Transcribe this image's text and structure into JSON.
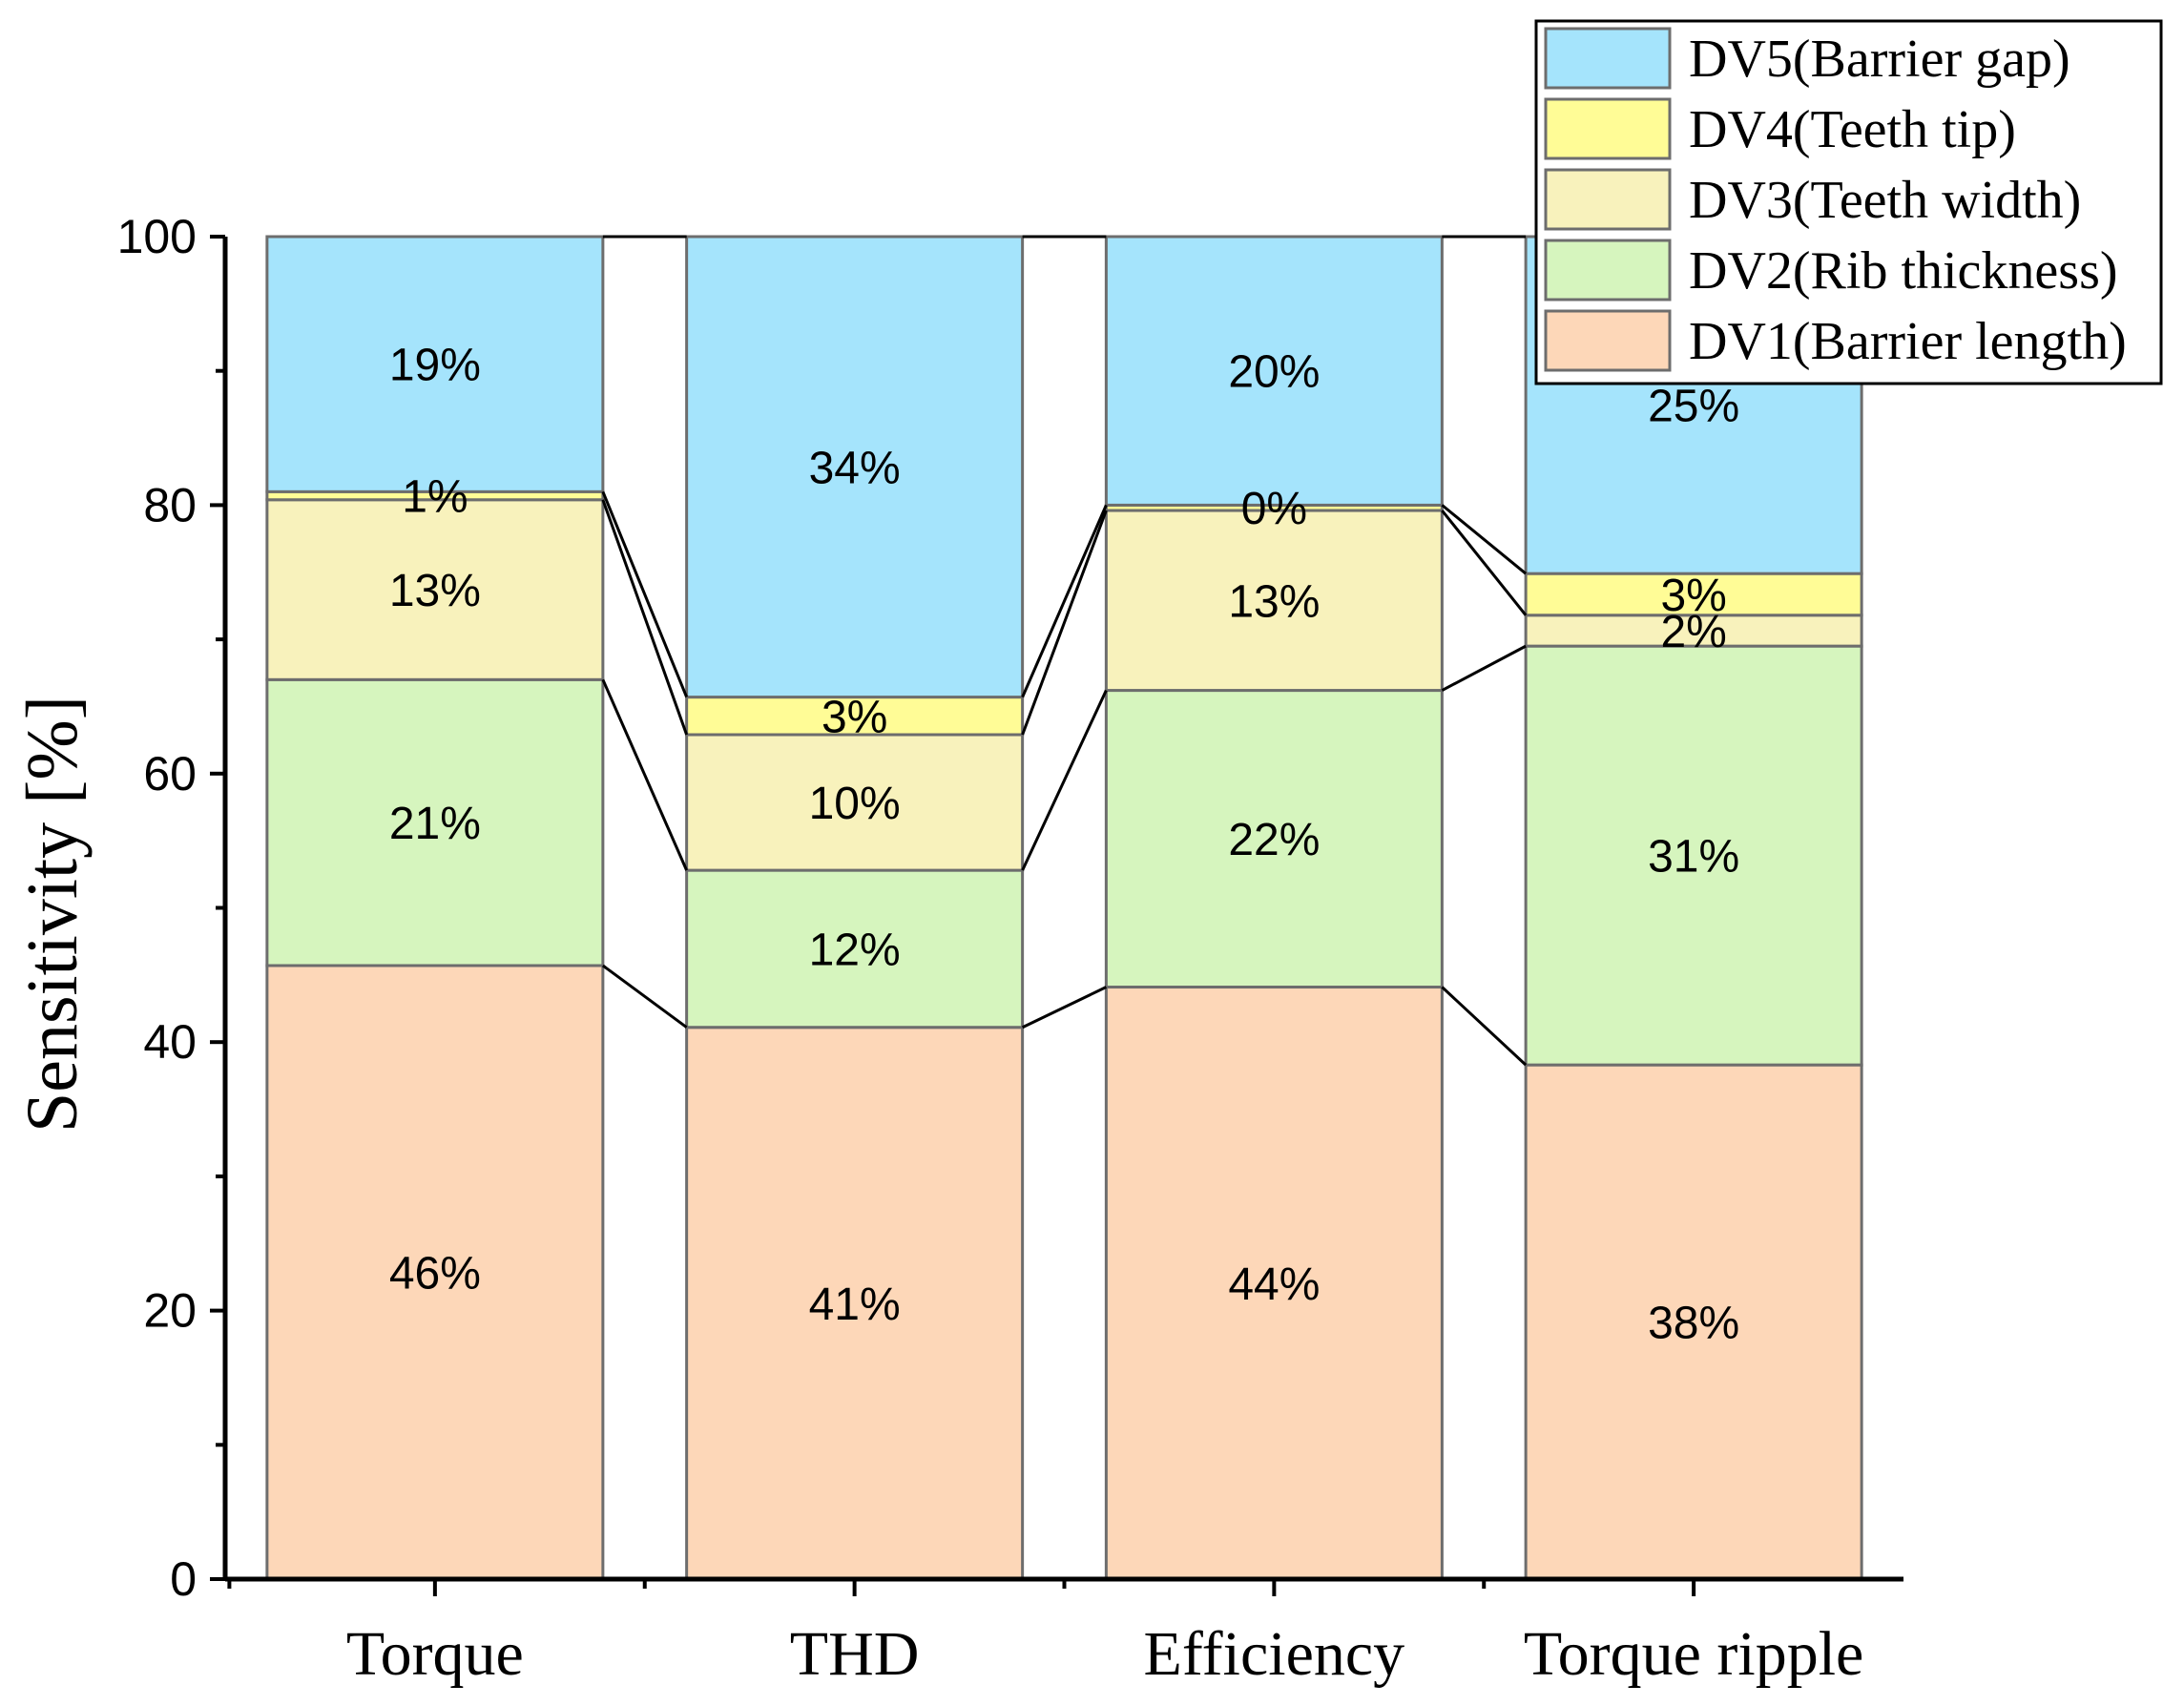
{
  "chart_data": {
    "type": "bar",
    "stacked": true,
    "title": "",
    "xlabel": "",
    "ylabel": "Sensitivity [%]",
    "ylim": [
      0,
      100
    ],
    "yticks": [
      0,
      20,
      40,
      60,
      80,
      100
    ],
    "categories": [
      "Torque",
      "THD",
      "Efficiency",
      "Torque ripple"
    ],
    "legend_position": "top-right",
    "connector_lines": true,
    "series": [
      {
        "name": "DV1(Barrier length)",
        "color": "#FDD7B8",
        "values": [
          45.7,
          41.1,
          44.1,
          38.3
        ],
        "labels": [
          "46%",
          "41%",
          "44%",
          "38%"
        ]
      },
      {
        "name": "DV2(Rib thickness)",
        "color": "#D6F5BE",
        "values": [
          21.3,
          11.7,
          22.1,
          31.2
        ],
        "labels": [
          "21%",
          "12%",
          "22%",
          "31%"
        ]
      },
      {
        "name": "DV3(Teeth width)",
        "color": "#F8F2BC",
        "values": [
          13.4,
          10.1,
          13.4,
          2.3
        ],
        "labels": [
          "13%",
          "10%",
          "13%",
          "2%"
        ]
      },
      {
        "name": "DV4(Teeth tip)",
        "color": "#FFFC96",
        "values": [
          0.6,
          2.8,
          0.4,
          3.1
        ],
        "labels": [
          "1%",
          "3%",
          "0%",
          "3%"
        ]
      },
      {
        "name": "DV5(Barrier gap)",
        "color": "#A5E4FC",
        "values": [
          19.0,
          34.3,
          20.0,
          25.1
        ],
        "labels": [
          "19%",
          "34%",
          "20%",
          "25%"
        ]
      }
    ]
  }
}
